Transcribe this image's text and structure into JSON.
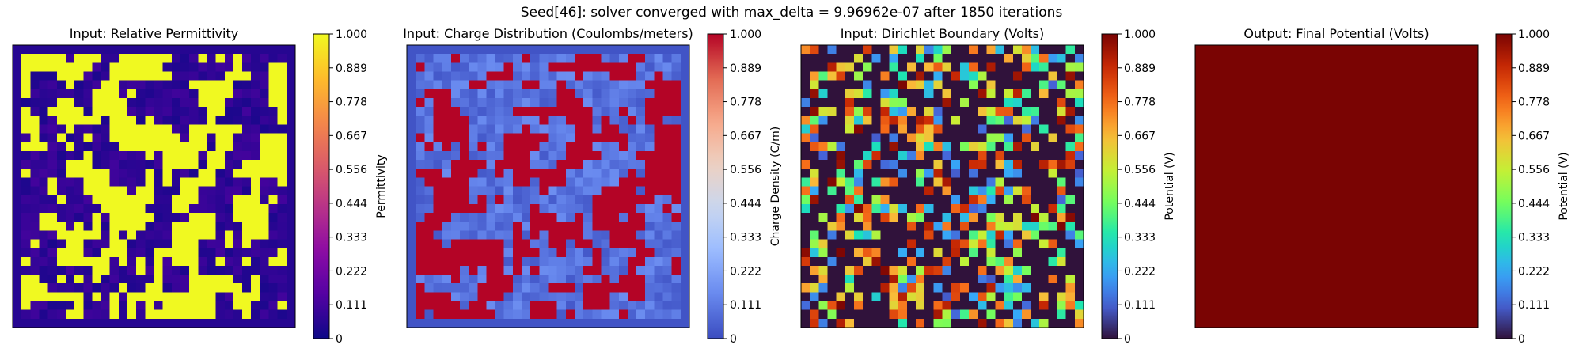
{
  "figure": {
    "title": "Seed[46]: solver converged with max_delta = 9.96962e-07 after 1850 iterations"
  },
  "colormaps": {
    "plasma": [
      "#0d0887",
      "#5302a3",
      "#8b0aa5",
      "#b83289",
      "#db5c68",
      "#f48849",
      "#febd2a",
      "#f0f921"
    ],
    "coolwarm": [
      "#3b4cc0",
      "#6788ee",
      "#9abbff",
      "#c9d7f0",
      "#edd1c2",
      "#f7a889",
      "#e26952",
      "#b40426"
    ],
    "turbo": [
      "#30123b",
      "#4662d7",
      "#36aaf9",
      "#1ae4b6",
      "#72fe5e",
      "#c7ef34",
      "#faba39",
      "#f66b19",
      "#ca2a04",
      "#7a0403"
    ]
  },
  "chart_data": [
    {
      "type": "heatmap",
      "title": "Input: Relative Permittivity",
      "colormap": "plasma",
      "colorbar_label": "Permittivity",
      "clim": [
        0,
        1
      ],
      "colorbar_ticks": [
        "0",
        "0.111",
        "0.222",
        "0.333",
        "0.444",
        "0.556",
        "0.667",
        "0.778",
        "0.889",
        "1.000"
      ],
      "grid": "32x32",
      "seed": 46,
      "pattern": "mostly low values (~0.05) with irregular bright blobs at 1.0",
      "border_value": 0.05
    },
    {
      "type": "heatmap",
      "title": "Input: Charge Distribution (Coulombs/meters)",
      "colormap": "coolwarm",
      "colorbar_label": "Charge Density (C/m)",
      "clim": [
        0,
        1
      ],
      "colorbar_ticks": [
        "0",
        "0.111",
        "0.222",
        "0.333",
        "0.444",
        "0.556",
        "0.667",
        "0.778",
        "0.889",
        "1.000"
      ],
      "grid": "32x32",
      "seed": 146,
      "pattern": "mostly low values (0.03-0.15) with clusters at 1.0",
      "border_value": 0.02
    },
    {
      "type": "heatmap",
      "title": "Input: Dirichlet Boundary (Volts)",
      "colormap": "turbo",
      "colorbar_label": "Potential (V)",
      "clim": [
        0,
        1
      ],
      "colorbar_ticks": [
        "0",
        "0.111",
        "0.222",
        "0.333",
        "0.444",
        "0.556",
        "0.667",
        "0.778",
        "0.889",
        "1.000"
      ],
      "grid": "32x32",
      "seed": 246,
      "pattern": "about half zeros, remaining cells random values between 0.1 and 1.0"
    },
    {
      "type": "heatmap",
      "title": "Output: Final Potential (Volts)",
      "colormap": "turbo",
      "colorbar_label": "Potential (V)",
      "clim": [
        0,
        1
      ],
      "colorbar_ticks": [
        "0",
        "0.111",
        "0.222",
        "0.333",
        "0.444",
        "0.556",
        "0.667",
        "0.778",
        "0.889",
        "1.000"
      ],
      "grid": "1x1",
      "uniform_value": 1.0
    }
  ]
}
